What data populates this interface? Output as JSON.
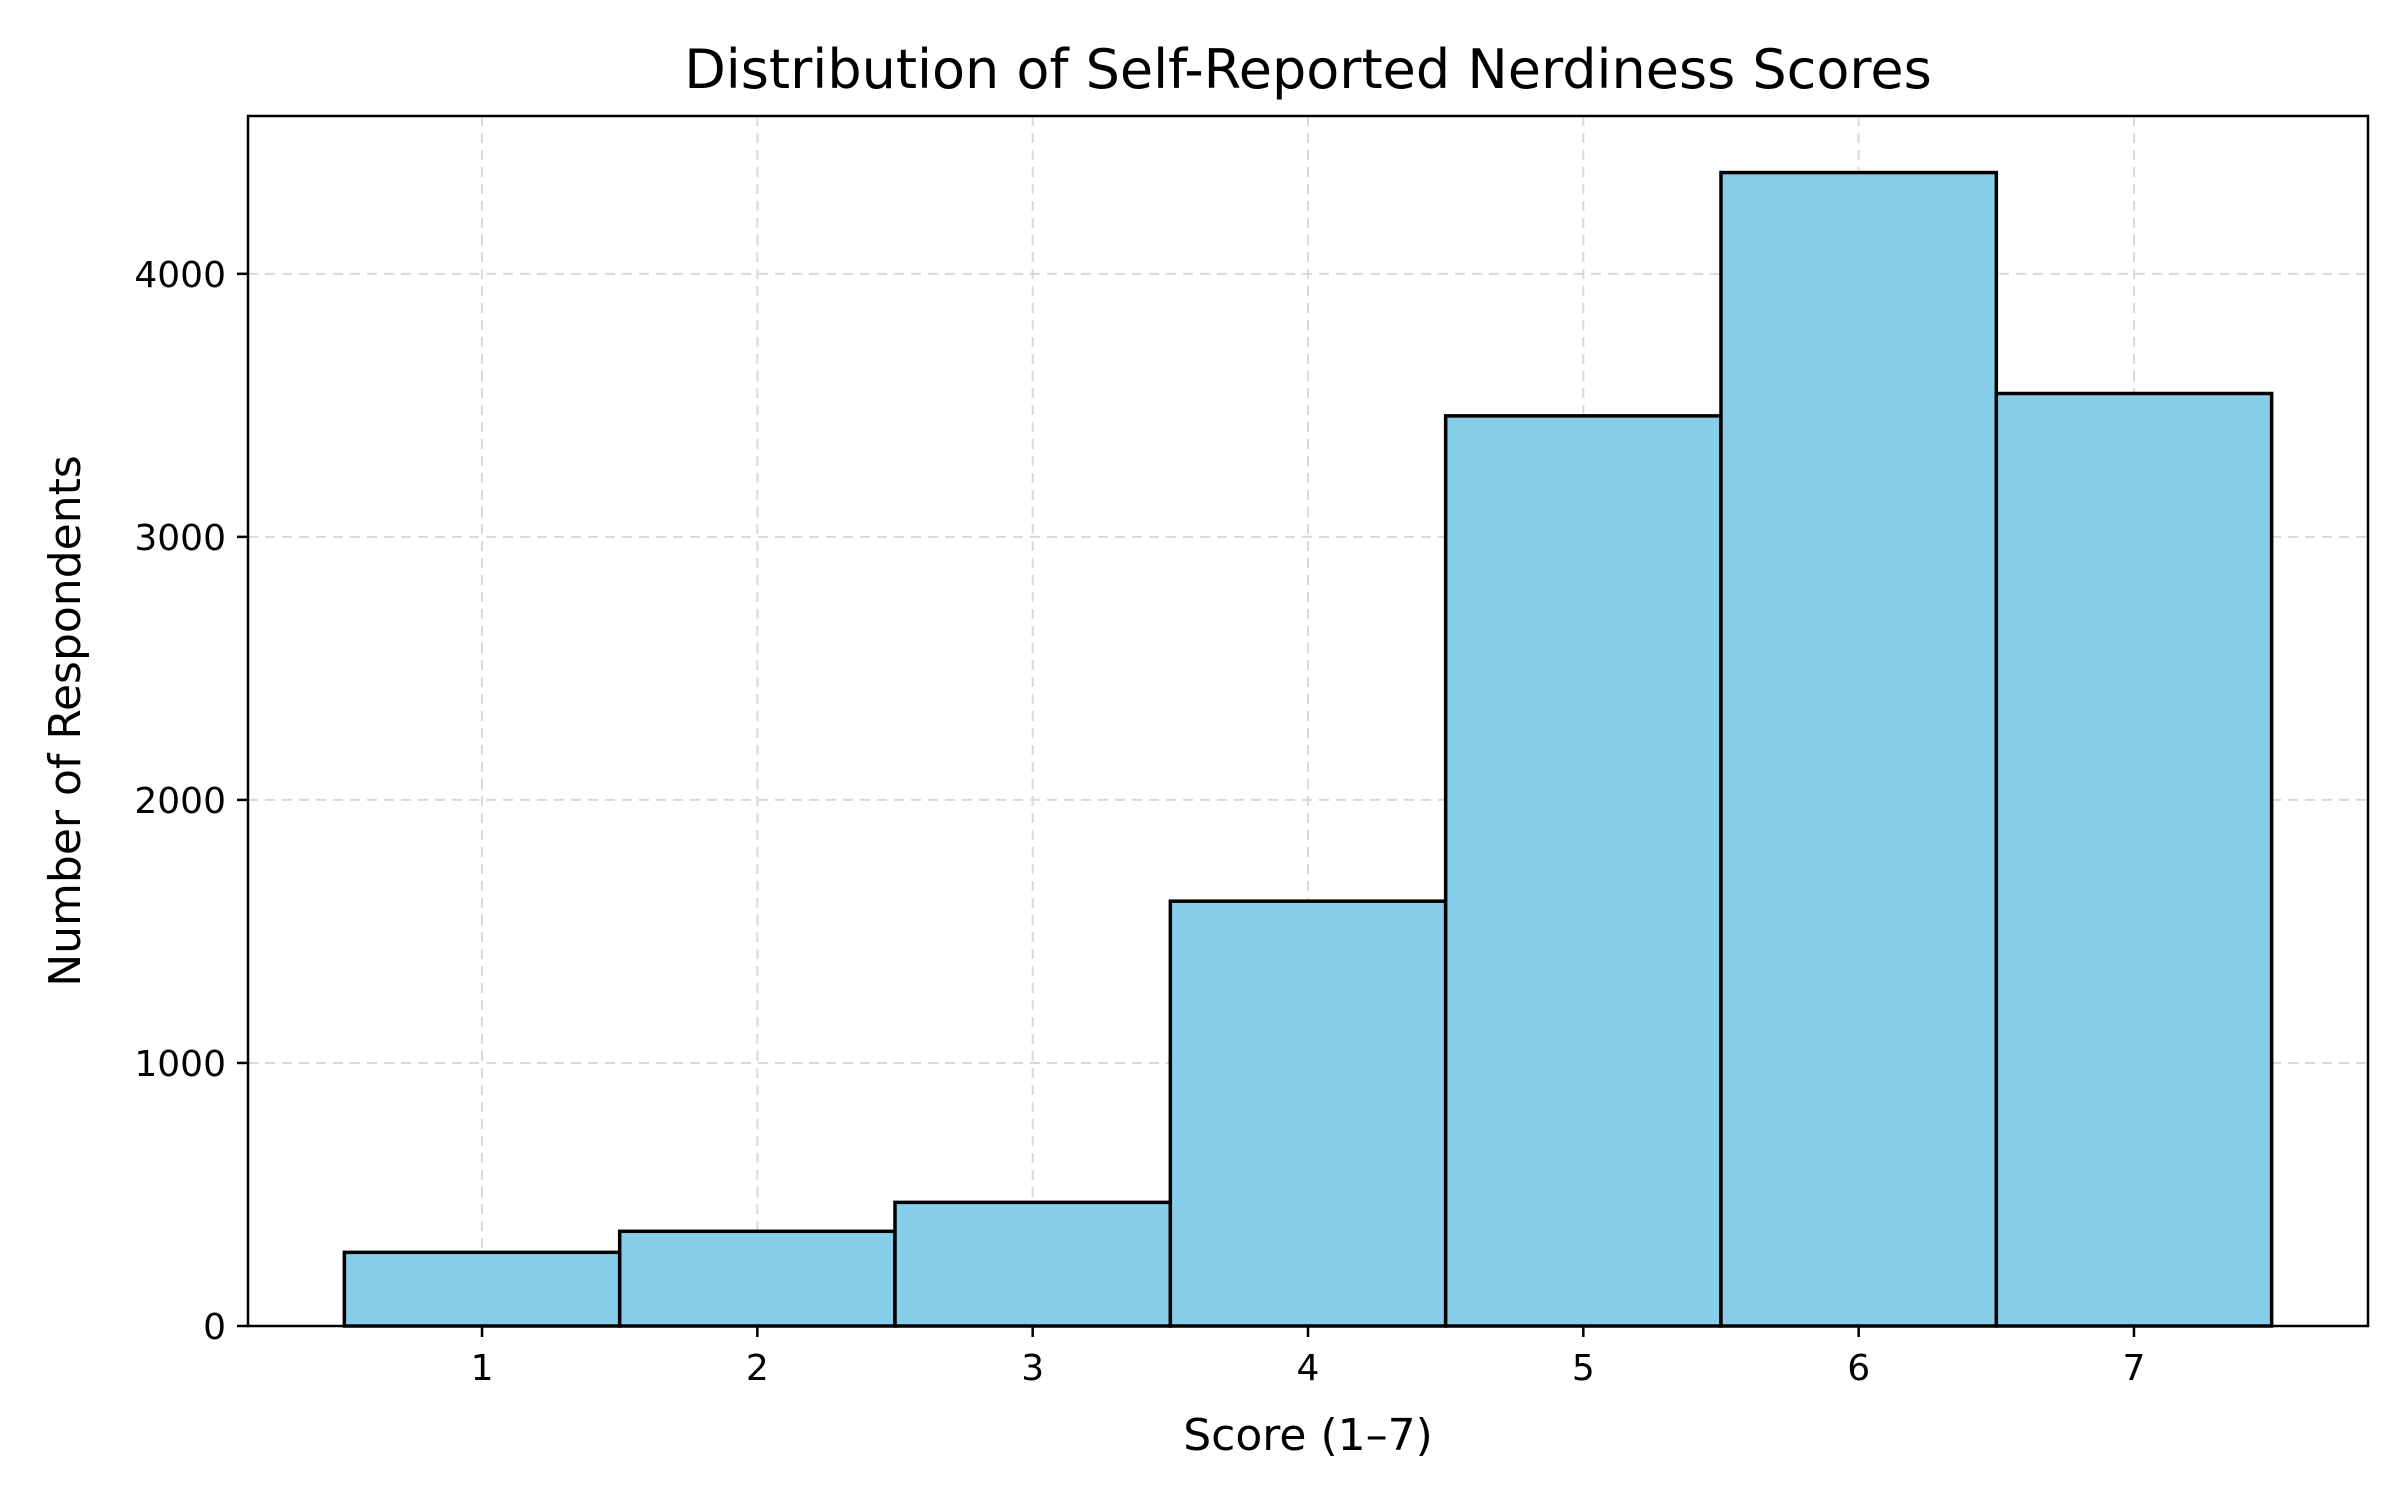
{
  "chart_data": {
    "type": "bar",
    "title": "Distribution of Self-Reported Nerdiness Scores",
    "xlabel": "Score (1–7)",
    "ylabel": "Number of Respondents",
    "categories": [
      "1",
      "2",
      "3",
      "4",
      "5",
      "6",
      "7"
    ],
    "values": [
      280,
      360,
      470,
      1615,
      3460,
      4385,
      3545
    ],
    "xlim": [
      0.15,
      7.85
    ],
    "ylim": [
      0,
      4600
    ],
    "yticks": [
      0,
      1000,
      2000,
      3000,
      4000
    ],
    "ytick_labels": [
      "0",
      "1000",
      "2000",
      "3000",
      "4000"
    ],
    "grid": true,
    "legend": "none",
    "bar_color": "#87CEEB",
    "edge_color": "#000000"
  }
}
